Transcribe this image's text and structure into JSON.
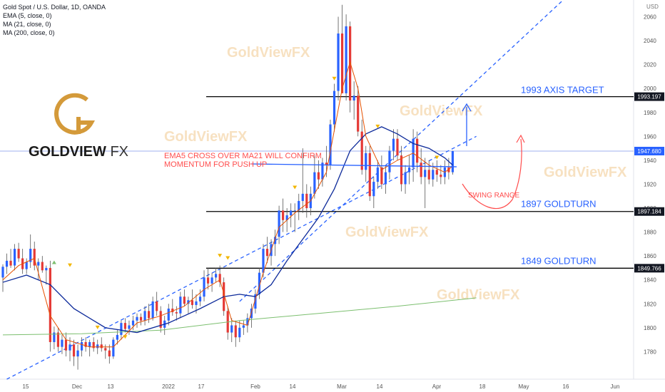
{
  "header": {
    "symbol_line": "Gold Spot / U.S. Dollar, 1D, OANDA",
    "indicators": [
      "EMA (5, close, 0)",
      "MA (21, close, 0)",
      "MA (200, close, 0)"
    ],
    "currency": "USD"
  },
  "logo": {
    "text_main": "GOLDVIEW",
    "text_fx": "FX"
  },
  "watermarks": [
    "GoldViewFX",
    "GoldViewFX",
    "GoldViewFX",
    "GoldViewFX",
    "GoldViewFX",
    "GoldViewFX"
  ],
  "colors": {
    "up": "#2962ff",
    "down": "#e53935",
    "ema5": "#e65100",
    "ma21": "#0d2a9a",
    "ma200": "#7cbf6f",
    "channel": "#2962ff",
    "annotation_red": "#ff4d4d",
    "annotation_blue": "#2962ff",
    "level_line": "#000000",
    "watermark": "#f5d5a8",
    "logo_gold": "#d49a3a"
  },
  "chart_data": {
    "type": "candlestick",
    "ylim": [
      1757,
      2074
    ],
    "y_ticks": [
      1780,
      1800,
      1820,
      1840,
      1860,
      1880,
      1900,
      1920,
      1940,
      1960,
      1980,
      2000,
      2020,
      2040,
      2060
    ],
    "x_ticks": [
      "15",
      "Dec",
      "13",
      "2022",
      "17",
      "Feb",
      "14",
      "Mar",
      "14",
      "Apr",
      "18",
      "May",
      "16",
      "Jun"
    ],
    "price_labels": [
      {
        "value": 1993.197,
        "text": "1993.197",
        "style": "dark"
      },
      {
        "value": 1947.68,
        "text": "1947.680",
        "style": "blue"
      },
      {
        "value": 1897.184,
        "text": "1897.184",
        "style": "dark"
      },
      {
        "value": 1849.766,
        "text": "1849.766",
        "style": "dark"
      }
    ],
    "levels": [
      {
        "value": 1993.197,
        "label": "1993 AXIS TARGET"
      },
      {
        "value": 1897.184,
        "label": "1897 GOLDTURN"
      },
      {
        "value": 1849.766,
        "label": "1849 GOLDTURN"
      }
    ],
    "annotations": [
      {
        "text": "EMA5 CROSS OVER MA21 WILL CONFIRM"
      },
      {
        "text": "MOMENTUM FOR PUSH UP"
      },
      {
        "text": "SWING RANGE"
      }
    ],
    "candles_ohlc": [
      [
        1842,
        1853,
        1830,
        1851
      ],
      [
        1851,
        1862,
        1845,
        1856
      ],
      [
        1856,
        1866,
        1850,
        1852
      ],
      [
        1852,
        1870,
        1848,
        1866
      ],
      [
        1866,
        1871,
        1855,
        1858
      ],
      [
        1858,
        1866,
        1845,
        1849
      ],
      [
        1849,
        1858,
        1845,
        1855
      ],
      [
        1855,
        1878,
        1850,
        1866
      ],
      [
        1866,
        1872,
        1848,
        1852
      ],
      [
        1852,
        1858,
        1840,
        1855
      ],
      [
        1855,
        1860,
        1846,
        1848
      ],
      [
        1848,
        1852,
        1836,
        1850
      ],
      [
        1850,
        1856,
        1780,
        1788
      ],
      [
        1788,
        1801,
        1782,
        1796
      ],
      [
        1796,
        1800,
        1780,
        1784
      ],
      [
        1784,
        1794,
        1778,
        1790
      ],
      [
        1790,
        1796,
        1776,
        1781
      ],
      [
        1781,
        1792,
        1772,
        1786
      ],
      [
        1786,
        1790,
        1768,
        1776
      ],
      [
        1776,
        1786,
        1765,
        1781
      ],
      [
        1781,
        1792,
        1776,
        1788
      ],
      [
        1788,
        1792,
        1780,
        1784
      ],
      [
        1784,
        1790,
        1776,
        1788
      ],
      [
        1788,
        1792,
        1780,
        1783
      ],
      [
        1783,
        1790,
        1778,
        1786
      ],
      [
        1786,
        1792,
        1780,
        1783
      ],
      [
        1783,
        1786,
        1774,
        1781
      ],
      [
        1781,
        1786,
        1770,
        1776
      ],
      [
        1776,
        1792,
        1774,
        1790
      ],
      [
        1790,
        1798,
        1786,
        1794
      ],
      [
        1794,
        1806,
        1790,
        1804
      ],
      [
        1804,
        1808,
        1796,
        1799
      ],
      [
        1799,
        1806,
        1794,
        1802
      ],
      [
        1802,
        1810,
        1798,
        1806
      ],
      [
        1806,
        1812,
        1800,
        1809
      ],
      [
        1809,
        1812,
        1802,
        1806
      ],
      [
        1806,
        1818,
        1802,
        1814
      ],
      [
        1814,
        1820,
        1804,
        1808
      ],
      [
        1808,
        1826,
        1806,
        1822
      ],
      [
        1822,
        1830,
        1810,
        1814
      ],
      [
        1814,
        1818,
        1796,
        1800
      ],
      [
        1800,
        1810,
        1794,
        1806
      ],
      [
        1806,
        1820,
        1802,
        1816
      ],
      [
        1816,
        1824,
        1810,
        1813
      ],
      [
        1813,
        1818,
        1806,
        1812
      ],
      [
        1812,
        1830,
        1808,
        1826
      ],
      [
        1826,
        1832,
        1818,
        1820
      ],
      [
        1820,
        1826,
        1812,
        1823
      ],
      [
        1823,
        1832,
        1816,
        1819
      ],
      [
        1819,
        1828,
        1812,
        1822
      ],
      [
        1822,
        1832,
        1818,
        1826
      ],
      [
        1826,
        1848,
        1822,
        1842
      ],
      [
        1842,
        1850,
        1832,
        1837
      ],
      [
        1837,
        1846,
        1830,
        1842
      ],
      [
        1842,
        1850,
        1838,
        1845
      ],
      [
        1845,
        1852,
        1834,
        1838
      ],
      [
        1838,
        1842,
        1810,
        1814
      ],
      [
        1814,
        1818,
        1790,
        1796
      ],
      [
        1796,
        1808,
        1788,
        1802
      ],
      [
        1802,
        1806,
        1784,
        1792
      ],
      [
        1792,
        1806,
        1788,
        1800
      ],
      [
        1800,
        1806,
        1794,
        1802
      ],
      [
        1802,
        1812,
        1796,
        1808
      ],
      [
        1808,
        1820,
        1800,
        1816
      ],
      [
        1816,
        1832,
        1812,
        1828
      ],
      [
        1828,
        1850,
        1824,
        1846
      ],
      [
        1846,
        1870,
        1842,
        1866
      ],
      [
        1866,
        1876,
        1854,
        1860
      ],
      [
        1860,
        1874,
        1852,
        1870
      ],
      [
        1870,
        1882,
        1860,
        1876
      ],
      [
        1876,
        1902,
        1870,
        1898
      ],
      [
        1898,
        1908,
        1880,
        1890
      ],
      [
        1890,
        1900,
        1880,
        1894
      ],
      [
        1894,
        1904,
        1884,
        1898
      ],
      [
        1898,
        1904,
        1880,
        1898
      ],
      [
        1898,
        1912,
        1890,
        1906
      ],
      [
        1906,
        1950,
        1896,
        1912
      ],
      [
        1912,
        1920,
        1892,
        1900
      ],
      [
        1900,
        1918,
        1894,
        1912
      ],
      [
        1912,
        1944,
        1908,
        1930
      ],
      [
        1930,
        1940,
        1916,
        1924
      ],
      [
        1924,
        1942,
        1918,
        1938
      ],
      [
        1938,
        1952,
        1926,
        1936
      ],
      [
        1936,
        1974,
        1932,
        1970
      ],
      [
        1970,
        2004,
        1964,
        1998
      ],
      [
        1998,
        2060,
        1990,
        2046
      ],
      [
        2046,
        2070,
        2012,
        1996
      ],
      [
        1996,
        2062,
        1990,
        2052
      ],
      [
        2052,
        2056,
        1980,
        1990
      ],
      [
        1990,
        2006,
        1974,
        1994
      ],
      [
        1994,
        2002,
        1960,
        1964
      ],
      [
        1964,
        1974,
        1928,
        1932
      ],
      [
        1932,
        1952,
        1922,
        1946
      ],
      [
        1946,
        1952,
        1906,
        1910
      ],
      [
        1910,
        1926,
        1900,
        1922
      ],
      [
        1922,
        1940,
        1916,
        1934
      ],
      [
        1934,
        1944,
        1916,
        1920
      ],
      [
        1920,
        1936,
        1912,
        1930
      ],
      [
        1930,
        1952,
        1924,
        1948
      ],
      [
        1948,
        1966,
        1940,
        1958
      ],
      [
        1958,
        1966,
        1940,
        1944
      ],
      [
        1944,
        1952,
        1914,
        1920
      ],
      [
        1920,
        1936,
        1912,
        1930
      ],
      [
        1930,
        1944,
        1920,
        1934
      ],
      [
        1934,
        1966,
        1922,
        1958
      ],
      [
        1958,
        1964,
        1930,
        1938
      ],
      [
        1938,
        1950,
        1920,
        1926
      ],
      [
        1926,
        1942,
        1900,
        1932
      ],
      [
        1932,
        1940,
        1920,
        1924
      ],
      [
        1924,
        1938,
        1918,
        1932
      ],
      [
        1932,
        1940,
        1922,
        1928
      ],
      [
        1928,
        1936,
        1920,
        1926
      ],
      [
        1926,
        1940,
        1920,
        1934
      ],
      [
        1934,
        1942,
        1924,
        1930
      ],
      [
        1930,
        1948,
        1928,
        1947.68
      ]
    ],
    "ema5": [
      [
        0,
        1840
      ],
      [
        4,
        1852
      ],
      [
        8,
        1858
      ],
      [
        12,
        1810
      ],
      [
        16,
        1790
      ],
      [
        22,
        1784
      ],
      [
        28,
        1784
      ],
      [
        34,
        1804
      ],
      [
        40,
        1810
      ],
      [
        46,
        1818
      ],
      [
        51,
        1832
      ],
      [
        55,
        1840
      ],
      [
        58,
        1806
      ],
      [
        62,
        1802
      ],
      [
        66,
        1846
      ],
      [
        70,
        1884
      ],
      [
        74,
        1896
      ],
      [
        78,
        1906
      ],
      [
        82,
        1930
      ],
      [
        86,
        2000
      ],
      [
        88,
        2022
      ],
      [
        90,
        2000
      ],
      [
        92,
        1960
      ],
      [
        96,
        1932
      ],
      [
        100,
        1940
      ],
      [
        104,
        1946
      ],
      [
        108,
        1936
      ],
      [
        112,
        1930
      ],
      [
        114,
        1935
      ]
    ],
    "ma21": [
      [
        0,
        1838
      ],
      [
        6,
        1844
      ],
      [
        12,
        1836
      ],
      [
        18,
        1816
      ],
      [
        26,
        1800
      ],
      [
        34,
        1796
      ],
      [
        42,
        1804
      ],
      [
        50,
        1816
      ],
      [
        56,
        1826
      ],
      [
        60,
        1828
      ],
      [
        64,
        1826
      ],
      [
        68,
        1836
      ],
      [
        72,
        1856
      ],
      [
        76,
        1874
      ],
      [
        80,
        1892
      ],
      [
        84,
        1916
      ],
      [
        88,
        1948
      ],
      [
        92,
        1962
      ],
      [
        96,
        1968
      ],
      [
        100,
        1962
      ],
      [
        104,
        1954
      ],
      [
        108,
        1950
      ],
      [
        112,
        1942
      ],
      [
        114,
        1936
      ]
    ],
    "ma200": [
      [
        0,
        1794
      ],
      [
        20,
        1795
      ],
      [
        40,
        1798
      ],
      [
        60,
        1806
      ],
      [
        80,
        1812
      ],
      [
        100,
        1818
      ],
      [
        120,
        1825
      ]
    ],
    "channel_lower": [
      [
        1,
        1757
      ],
      [
        120,
        1960
      ]
    ],
    "channel_upper": [
      [
        60,
        1822
      ],
      [
        142,
        2074
      ]
    ]
  }
}
